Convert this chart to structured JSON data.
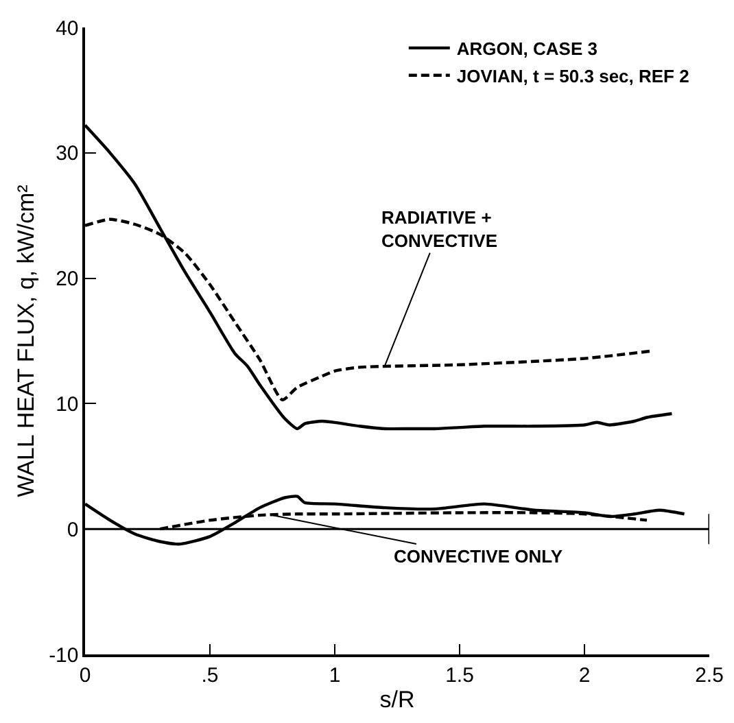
{
  "chart_data": {
    "type": "line",
    "xlabel": "s/R",
    "ylabel": "WALL HEAT FLUX, q, kW/cm²",
    "xlim": [
      0,
      2.5
    ],
    "ylim": [
      -10,
      40
    ],
    "xticks": [
      0,
      {
        "value": 0.5,
        "label": ".5"
      },
      1,
      1.5,
      2,
      2.5
    ],
    "yticks": [
      -10,
      0,
      10,
      20,
      30,
      40
    ],
    "grid": false,
    "legend": "top right",
    "marker": "none",
    "ref_lines": [
      {
        "axis": "y",
        "value": 0,
        "color": "#000000",
        "line_style": "solid"
      }
    ],
    "annotations": [
      {
        "text": "RADIATIVE +\nCONVECTIVE",
        "x": 1.2,
        "y": 13
      },
      {
        "text": "CONVECTIVE ONLY",
        "x": 0.75,
        "y": 1.1
      }
    ],
    "series": [
      {
        "name": "ARGON, CASE 3",
        "color": "#000000",
        "line_style": "solid",
        "x": [
          0,
          0.1,
          0.2,
          0.3,
          0.4,
          0.5,
          0.6,
          0.65,
          0.7,
          0.8,
          0.85,
          0.88,
          0.95,
          1.0,
          1.1,
          1.2,
          1.3,
          1.4,
          1.5,
          1.6,
          1.8,
          2.0,
          2.05,
          2.1,
          2.2,
          2.25,
          2.35
        ],
        "values": [
          32.2,
          30,
          27.5,
          24,
          20.5,
          17.3,
          14,
          13,
          11.5,
          8.8,
          8,
          8.4,
          8.6,
          8.5,
          8.2,
          8,
          8,
          8,
          8.1,
          8.2,
          8.2,
          8.3,
          8.5,
          8.3,
          8.6,
          8.9,
          9.2
        ]
      },
      {
        "name": "JOVIAN, t = 50.3 sec, REF 2",
        "color": "#000000",
        "line_style": "dashed",
        "x": [
          0,
          0.1,
          0.2,
          0.3,
          0.4,
          0.5,
          0.6,
          0.7,
          0.79,
          0.85,
          0.95,
          1.0,
          1.1,
          1.5,
          2.0,
          2.27
        ],
        "values": [
          24.2,
          24.7,
          24.3,
          23.5,
          22,
          19.5,
          16.5,
          13.5,
          10.3,
          11.3,
          12.2,
          12.6,
          12.9,
          13.1,
          13.6,
          14.2
        ]
      },
      {
        "color": "#000000",
        "line_style": "solid",
        "x": [
          0,
          0.1,
          0.2,
          0.3,
          0.38,
          0.5,
          0.6,
          0.7,
          0.8,
          0.85,
          0.88,
          1.0,
          1.2,
          1.4,
          1.6,
          1.8,
          2.0,
          2.1,
          2.2,
          2.3,
          2.4
        ],
        "values": [
          2,
          0.7,
          -0.4,
          -1,
          -1.2,
          -0.6,
          0.5,
          1.7,
          2.5,
          2.6,
          2.1,
          2,
          1.7,
          1.6,
          2,
          1.5,
          1.3,
          1,
          1.2,
          1.5,
          1.2
        ]
      },
      {
        "color": "#000000",
        "line_style": "dashed",
        "x": [
          0.3,
          0.5,
          0.7,
          0.85,
          1.0,
          1.5,
          1.8,
          2.0,
          2.25
        ],
        "values": [
          0,
          0.7,
          1.1,
          1.2,
          1.2,
          1.3,
          1.3,
          1.2,
          0.7
        ]
      }
    ]
  }
}
